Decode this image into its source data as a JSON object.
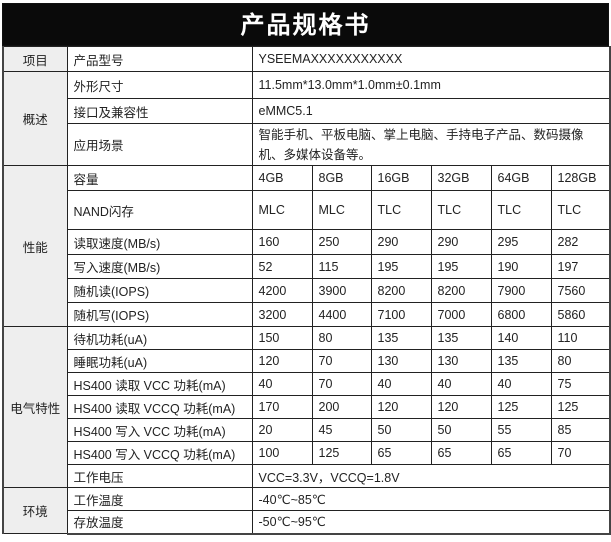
{
  "title": "产品规格书",
  "header": {
    "section": "项目",
    "label": "产品型号",
    "value": "YSEEMAXXXXXXXXXXX"
  },
  "overview": {
    "section": "概述",
    "rows": [
      {
        "label": "外形尺寸",
        "value": "11.5mm*13.0mm*1.0mm±0.1mm"
      },
      {
        "label": "接口及兼容性",
        "value": "eMMC5.1"
      },
      {
        "label": "应用场景",
        "value": "智能手机、平板电脑、掌上电脑、手持电子产品、数码摄像机、多媒体设备等。"
      }
    ]
  },
  "performance": {
    "section": "性能",
    "rows": [
      {
        "label": "容量",
        "values": [
          "4GB",
          "8GB",
          "16GB",
          "32GB",
          "64GB",
          "128GB"
        ]
      },
      {
        "label": "NAND闪存",
        "values": [
          "MLC",
          "MLC",
          "TLC",
          "TLC",
          "TLC",
          "TLC"
        ]
      },
      {
        "label": "读取速度(MB/s)",
        "values": [
          "160",
          "250",
          "290",
          "290",
          "295",
          "282"
        ]
      },
      {
        "label": "写入速度(MB/s)",
        "values": [
          "52",
          "115",
          "195",
          "195",
          "190",
          "197"
        ]
      },
      {
        "label": "随机读(IOPS)",
        "values": [
          "4200",
          "3900",
          "8200",
          "8200",
          "7900",
          "7560"
        ]
      },
      {
        "label": "随机写(IOPS)",
        "values": [
          "3200",
          "4400",
          "7100",
          "7000",
          "6800",
          "5860"
        ]
      }
    ]
  },
  "electrical": {
    "section": "电气特性",
    "rows": [
      {
        "label": "待机功耗(uA)",
        "values": [
          "150",
          "80",
          "135",
          "135",
          "140",
          "110"
        ]
      },
      {
        "label": "睡眠功耗(uA)",
        "values": [
          "120",
          "70",
          "130",
          "130",
          "135",
          "80"
        ]
      },
      {
        "label": "HS400 读取 VCC 功耗(mA)",
        "values": [
          "40",
          "70",
          "40",
          "40",
          "40",
          "75"
        ]
      },
      {
        "label": "HS400 读取 VCCQ 功耗(mA)",
        "values": [
          "170",
          "200",
          "120",
          "120",
          "125",
          "125"
        ]
      },
      {
        "label": "HS400 写入 VCC 功耗(mA)",
        "values": [
          "20",
          "45",
          "50",
          "50",
          "55",
          "85"
        ]
      },
      {
        "label": "HS400 写入 VCCQ 功耗(mA)",
        "values": [
          "100",
          "125",
          "65",
          "65",
          "65",
          "70"
        ]
      }
    ],
    "voltage": {
      "label": "工作电压",
      "value": "VCC=3.3V，VCCQ=1.8V"
    }
  },
  "environment": {
    "section": "环境",
    "rows": [
      {
        "label": "工作温度",
        "value": "-40℃~85℃"
      },
      {
        "label": "存放温度",
        "value": "-50℃~95℃"
      }
    ]
  }
}
